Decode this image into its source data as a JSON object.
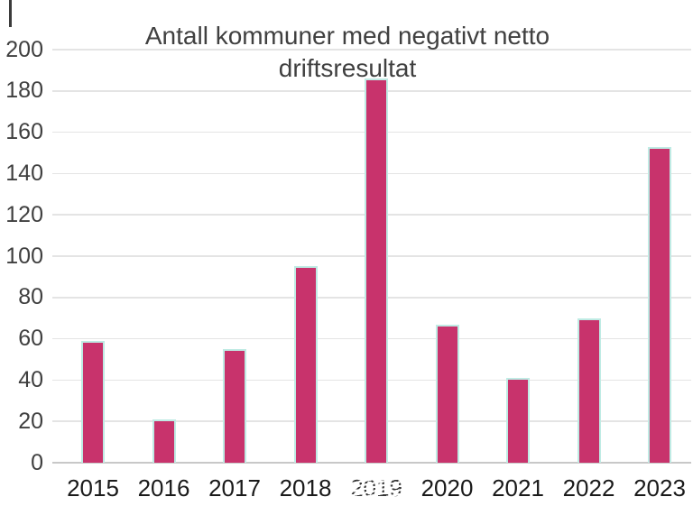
{
  "chart_data": {
    "type": "bar",
    "title": "Antall kommuner med negativt netto driftsresultat",
    "title_lines": [
      "Antall kommuner med negativt netto",
      "driftsresultat"
    ],
    "categories": [
      "2015",
      "2016",
      "2017",
      "2018",
      "2019",
      "2020",
      "2021",
      "2022",
      "2023"
    ],
    "values": [
      59,
      21,
      55,
      95,
      186,
      67,
      41,
      70,
      153
    ],
    "xlabel": "",
    "ylabel": "",
    "ylim": [
      0,
      200
    ],
    "yticks": [
      0,
      20,
      40,
      60,
      80,
      100,
      120,
      140,
      160,
      180,
      200
    ],
    "grid": "horizontal",
    "legend": "none",
    "bar_color": "#c8336c",
    "bar_border_color": "#bfebe4",
    "gridline_color": "#e4e4e4",
    "axis_line_color": "#c8c8c8",
    "title_color": "#404040",
    "glitched_tick": "2019"
  }
}
